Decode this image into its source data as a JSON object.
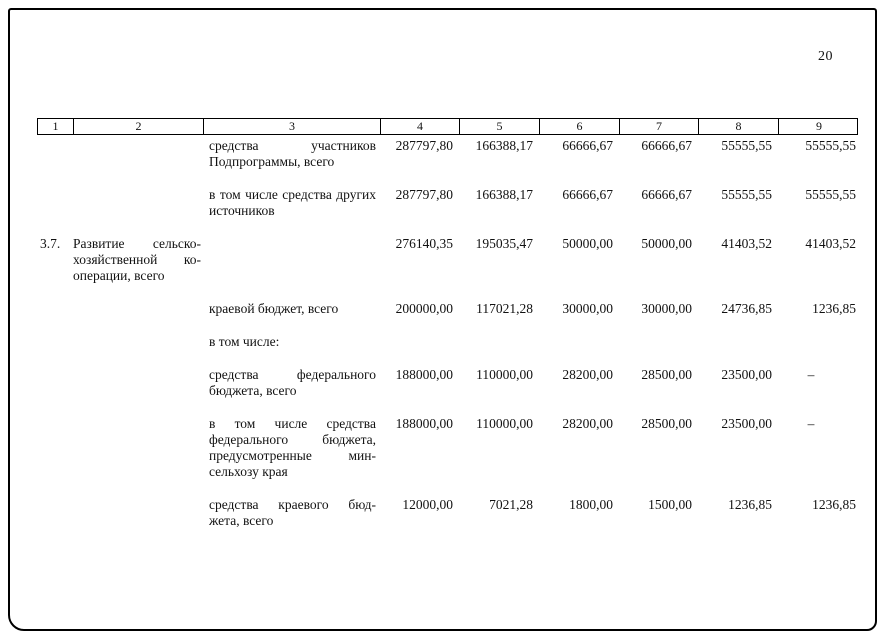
{
  "page": {
    "number": "20"
  },
  "table": {
    "header": [
      "1",
      "2",
      "3",
      "4",
      "5",
      "6",
      "7",
      "8",
      "9"
    ],
    "rows": [
      {
        "num": "",
        "label2": "",
        "label3": "средства участников Подпрограммы, всего",
        "values": [
          "287797,80",
          "166388,17",
          "66666,67",
          "66666,67",
          "55555,55",
          "55555,55"
        ]
      },
      {
        "num": "",
        "label2": "",
        "label3": "в том числе средства других источников",
        "values": [
          "287797,80",
          "166388,17",
          "66666,67",
          "66666,67",
          "55555,55",
          "55555,55"
        ]
      },
      {
        "num": "3.7.",
        "label2": "Развитие сельско- хозяйственной ко- операции, всего",
        "label3": "",
        "values": [
          "276140,35",
          "195035,47",
          "50000,00",
          "50000,00",
          "41403,52",
          "41403,52"
        ]
      },
      {
        "num": "",
        "label2": "",
        "label3": "краевой бюджет, всего",
        "values": [
          "200000,00",
          "117021,28",
          "30000,00",
          "30000,00",
          "24736,85",
          "1236,85"
        ]
      },
      {
        "num": "",
        "label2": "",
        "label3": "в том числе:",
        "values": [
          "",
          "",
          "",
          "",
          "",
          ""
        ]
      },
      {
        "num": "",
        "label2": "",
        "label3": "средства федерального бюджета, всего",
        "values": [
          "188000,00",
          "110000,00",
          "28200,00",
          "28500,00",
          "23500,00",
          "–"
        ]
      },
      {
        "num": "",
        "label2": "",
        "label3": "в том числе средства федерального бюджета, предусмотренные мин- сельхозу края",
        "values": [
          "188000,00",
          "110000,00",
          "28200,00",
          "28500,00",
          "23500,00",
          "–"
        ]
      },
      {
        "num": "",
        "label2": "",
        "label3": "средства краевого бюд- жета, всего",
        "values": [
          "12000,00",
          "7021,28",
          "1800,00",
          "1500,00",
          "1236,85",
          "1236,85"
        ]
      }
    ]
  }
}
